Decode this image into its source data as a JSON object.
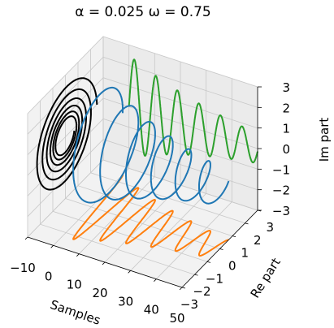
{
  "chart_data": {
    "type": "line",
    "projection": "3d",
    "title": "α = 0.025   ω = 0.75",
    "xlabel": "Samples",
    "ylabel": "Re part",
    "zlabel": "Im part",
    "xlim": [
      -10,
      50
    ],
    "ylim": [
      -3,
      3
    ],
    "zlim": [
      -3,
      3
    ],
    "xticks": [
      "−10",
      "0",
      "10",
      "20",
      "30",
      "40",
      "50"
    ],
    "yticks": [
      "−3",
      "−2",
      "−1",
      "0",
      "1",
      "2",
      "3"
    ],
    "zticks": [
      "−3",
      "−2",
      "−1",
      "0",
      "1",
      "2",
      "3"
    ],
    "grid": true,
    "signal": {
      "formula": "z(n) = exp((-alpha + i*omega) * n), plotted for n from 0 to 50",
      "alpha": 0.025,
      "omega": 0.75,
      "n_start": 0,
      "n_end": 50,
      "amplitude": 2.5
    },
    "series": [
      {
        "color": "#1f77b4",
        "projection": "complex signal in 3D"
      },
      {
        "color": "#ff7f0e",
        "projection": "real part on the floor (Im = -3)"
      },
      {
        "color": "#2ca02c",
        "projection": "imaginary part on the back wall (Re = 3)"
      },
      {
        "color": "#000000",
        "projection": "complex plane on the side wall (Samples = -10)"
      }
    ]
  }
}
